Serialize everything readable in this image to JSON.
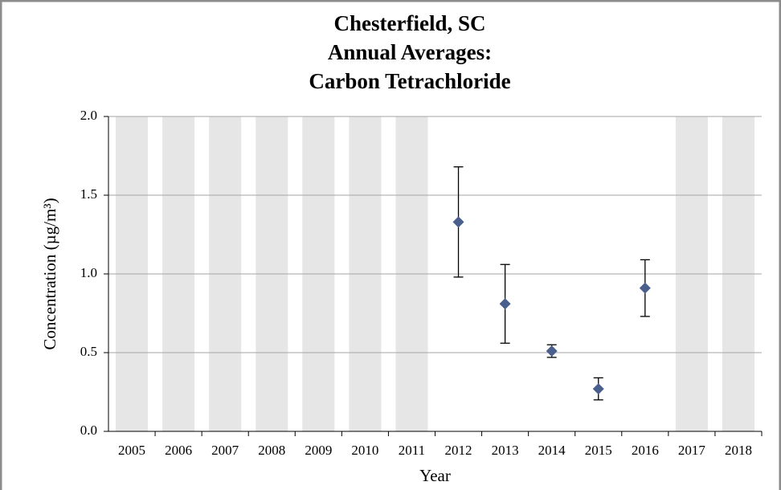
{
  "chart_data": {
    "type": "errorbar",
    "title": [
      "Chesterfield, SC",
      "Annual Averages:",
      "Carbon Tetrachloride"
    ],
    "x_label": "Year",
    "y_label": "Concentration (µg/m³)",
    "categories": [
      "2005",
      "2006",
      "2007",
      "2008",
      "2009",
      "2010",
      "2011",
      "2012",
      "2013",
      "2014",
      "2015",
      "2016",
      "2017",
      "2018"
    ],
    "values": [
      null,
      null,
      null,
      null,
      null,
      null,
      null,
      1.33,
      0.81,
      0.51,
      0.27,
      0.91,
      null,
      null
    ],
    "errors": [
      null,
      null,
      null,
      null,
      null,
      null,
      null,
      0.35,
      0.25,
      0.04,
      0.07,
      0.18,
      null,
      null
    ],
    "color": "#4a5f8c",
    "no_data_color": "#e6e6e6",
    "ylim": [
      0,
      2
    ],
    "yticks": [
      {
        "value": 0,
        "label": "0.0"
      },
      0.5,
      {
        "value": 1,
        "label": "1.0"
      },
      1.5,
      {
        "value": 2,
        "label": "2.0"
      }
    ],
    "grid": true
  }
}
